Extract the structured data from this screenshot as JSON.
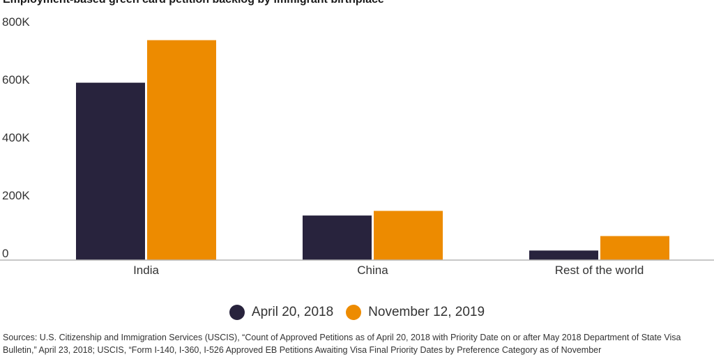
{
  "chart_data": {
    "type": "bar",
    "title": "Employment-based green card petition backlog by immigrant birthplace",
    "categories": [
      "India",
      "China",
      "Rest of the world"
    ],
    "series": [
      {
        "name": "April 20, 2018",
        "values": [
          613000,
          154000,
          33000
        ],
        "color": "#28233d"
      },
      {
        "name": "November 12, 2019",
        "values": [
          760000,
          170000,
          83000
        ],
        "color": "#ed8b00"
      }
    ],
    "ylim": [
      0,
      800000
    ],
    "yticks": [
      0,
      200000,
      400000,
      600000,
      800000
    ],
    "ytick_labels": [
      "0",
      "200K",
      "400K",
      "600K",
      "800K"
    ],
    "xlabel": "",
    "ylabel": "",
    "grid": false,
    "legend_position": "bottom"
  },
  "sources": "Sources: U.S. Citizenship and Immigration Services (USCIS), “Count of Approved Petitions as of April 20, 2018 with Priority Date on or after May 2018 Department of State Visa Bulletin,” April 23, 2018; USCIS, “Form I-140, I-360, I-526 Approved EB Petitions Awaiting Visa Final Priority Dates by Preference Category as of November"
}
